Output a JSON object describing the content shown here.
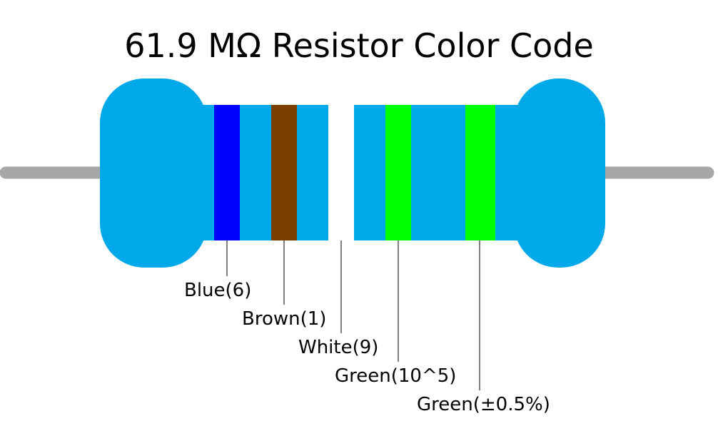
{
  "title": "61.9 MΩ Resistor Color Code",
  "bands": [
    {
      "label": "Blue(6)",
      "color": "#0000ff"
    },
    {
      "label": "Brown(1)",
      "color": "#7b3f00"
    },
    {
      "label": "White(9)",
      "color": "#ffffff"
    },
    {
      "label": "Green(10^5)",
      "color": "#00ff00"
    },
    {
      "label": "Green(±0.5%)",
      "color": "#00ff00"
    }
  ]
}
